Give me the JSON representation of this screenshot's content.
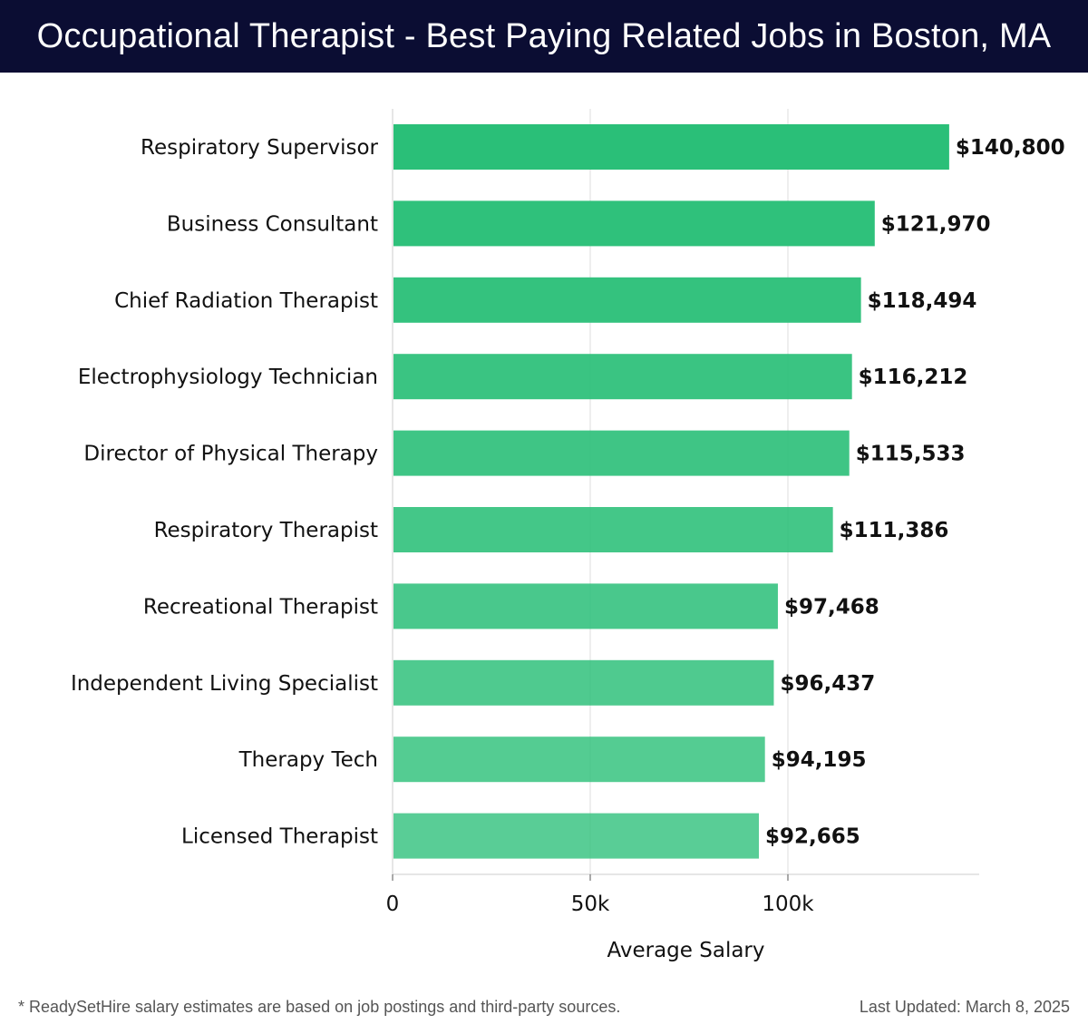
{
  "header": {
    "title": "Occupational Therapist - Best Paying Related Jobs in Boston, MA"
  },
  "colors": {
    "header_bg": "#0b0d33",
    "bar_top": "#2abf78",
    "bar_bottom": "#5ccf97",
    "grid": "#dddddd",
    "axis": "#cccccc",
    "text": "#111111",
    "footer_text": "#555555"
  },
  "chart_data": {
    "type": "bar",
    "orientation": "horizontal",
    "categories": [
      "Respiratory Supervisor",
      "Business Consultant",
      "Chief Radiation Therapist",
      "Electrophysiology Technician",
      "Director of Physical Therapy",
      "Respiratory Therapist",
      "Recreational Therapist",
      "Independent Living Specialist",
      "Therapy Tech",
      "Licensed Therapist"
    ],
    "values": [
      140800,
      121970,
      118494,
      116212,
      115533,
      111386,
      97468,
      96437,
      94195,
      92665
    ],
    "value_labels": [
      "$140,800",
      "$121,970",
      "$118,494",
      "$116,212",
      "$115,533",
      "$111,386",
      "$97,468",
      "$96,437",
      "$94,195",
      "$92,665"
    ],
    "xlabel": "Average Salary",
    "ylabel": "",
    "xlim": [
      0,
      148000
    ],
    "xticks": [
      0,
      50000,
      100000
    ],
    "xtick_labels": [
      "0",
      "50k",
      "100k"
    ],
    "grid": true
  },
  "footer": {
    "note": "* ReadySetHire salary estimates are based on job postings and third-party sources.",
    "updated": "Last Updated: March 8, 2025"
  }
}
